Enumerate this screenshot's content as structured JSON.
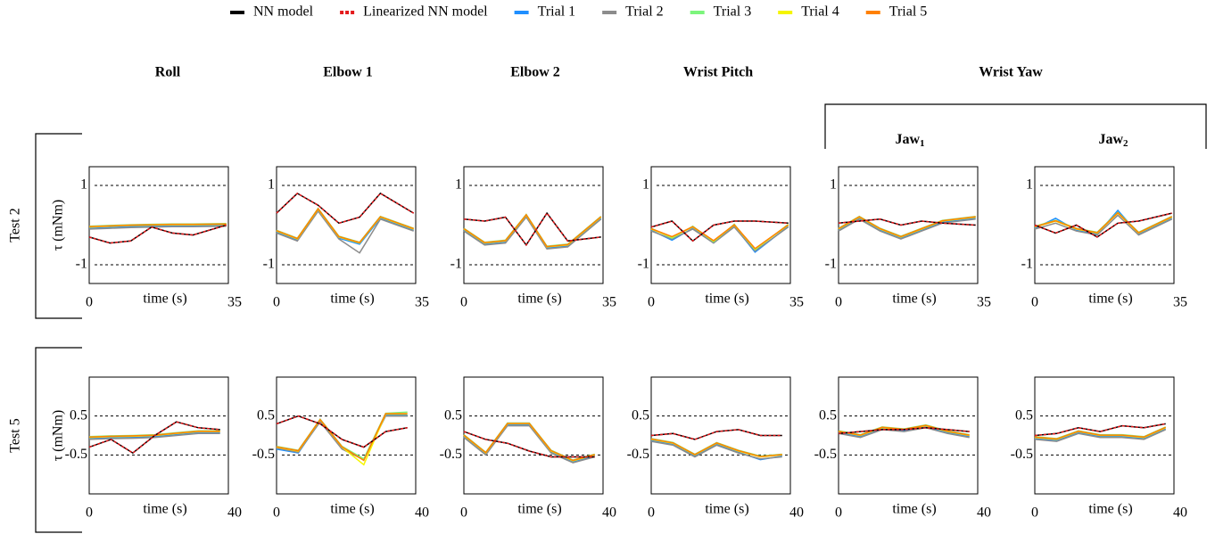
{
  "chart_data": {
    "type": "line",
    "series": [
      {
        "name": "NN model",
        "color": "#000000",
        "dash": "solid"
      },
      {
        "name": "Linearized NN model",
        "color": "#e41a1c",
        "dash": "dashed"
      },
      {
        "name": "Trial 1",
        "color": "#1f8fff",
        "dash": "solid"
      },
      {
        "name": "Trial 2",
        "color": "#8c8c8c",
        "dash": "solid"
      },
      {
        "name": "Trial 3",
        "color": "#7cf57c",
        "dash": "solid"
      },
      {
        "name": "Trial 4",
        "color": "#f5f500",
        "dash": "solid"
      },
      {
        "name": "Trial 5",
        "color": "#ff8000",
        "dash": "solid"
      }
    ],
    "column_titles": [
      "Roll",
      "Elbow 1",
      "Elbow 2",
      "Wrist Pitch",
      "Wrist Yaw"
    ],
    "sub_titles": [
      {
        "text": "Jaw",
        "sub": "1"
      },
      {
        "text": "Jaw",
        "sub": "2"
      }
    ],
    "xlabel": "time (s)",
    "ylabel": "τ (mNm)",
    "rows": [
      {
        "label": "Test 2",
        "xlim": [
          0,
          35
        ],
        "xticks": [
          0,
          35
        ],
        "ylim": [
          -1.47,
          1.47
        ],
        "yticks": [
          -1,
          1
        ],
        "x": [
          0,
          5,
          10,
          15,
          20,
          25,
          33
        ],
        "panels": [
          [
            [
              -0.3,
              -0.45,
              -0.4,
              -0.05,
              -0.2,
              -0.25,
              0
            ],
            [
              -0.3,
              -0.45,
              -0.4,
              -0.05,
              -0.2,
              -0.25,
              0
            ],
            [
              -0.08,
              -0.06,
              -0.04,
              -0.03,
              -0.02,
              -0.02,
              -0.01
            ],
            [
              -0.1,
              -0.08,
              -0.06,
              -0.05,
              -0.04,
              -0.04,
              -0.03
            ],
            [
              -0.03,
              -0.01,
              0.01,
              0.02,
              0.03,
              0.03,
              0.04
            ],
            [
              -0.05,
              -0.03,
              -0.01,
              0,
              0.01,
              0.01,
              0.02
            ],
            [
              -0.04,
              -0.02,
              0,
              0.01,
              0.02,
              0.02,
              0.03
            ]
          ],
          [
            [
              0.3,
              0.8,
              0.5,
              0.05,
              0.2,
              0.8,
              0.3
            ],
            [
              0.3,
              0.8,
              0.5,
              0.05,
              0.2,
              0.8,
              0.3
            ],
            [
              -0.18,
              -0.38,
              0.37,
              -0.33,
              -0.48,
              0.17,
              -0.13
            ],
            [
              -0.2,
              -0.4,
              0.35,
              -0.35,
              -0.7,
              0.15,
              -0.15
            ],
            [
              -0.13,
              -0.33,
              0.42,
              -0.28,
              -0.43,
              0.22,
              -0.08
            ],
            [
              -0.15,
              -0.35,
              0.4,
              -0.3,
              -0.45,
              0.2,
              -0.1
            ],
            [
              -0.14,
              -0.34,
              0.41,
              -0.29,
              -0.44,
              0.21,
              -0.09
            ]
          ],
          [
            [
              0.15,
              0.1,
              0.2,
              -0.5,
              0.3,
              -0.4,
              -0.3
            ],
            [
              0.15,
              0.1,
              0.2,
              -0.5,
              0.3,
              -0.4,
              -0.3
            ],
            [
              -0.13,
              -0.48,
              -0.43,
              0.22,
              -0.58,
              -0.53,
              0.17
            ],
            [
              -0.15,
              -0.5,
              -0.45,
              0.2,
              -0.6,
              -0.55,
              0.15
            ],
            [
              -0.08,
              -0.43,
              -0.38,
              0.27,
              -0.53,
              -0.48,
              0.22
            ],
            [
              -0.1,
              -0.45,
              -0.4,
              0.25,
              -0.55,
              -0.5,
              0.2
            ],
            [
              -0.09,
              -0.44,
              -0.39,
              0.26,
              -0.54,
              -0.49,
              0.21
            ]
          ],
          [
            [
              -0.05,
              0.1,
              -0.4,
              0,
              0.1,
              0.1,
              0.05
            ],
            [
              -0.05,
              0.1,
              -0.4,
              0,
              0.1,
              0.1,
              0.05
            ],
            [
              -0.13,
              -0.38,
              -0.08,
              -0.45,
              -0.03,
              -0.68,
              -0.03
            ],
            [
              -0.15,
              -0.35,
              -0.1,
              -0.45,
              -0.05,
              -0.65,
              -0.05
            ],
            [
              -0.08,
              -0.33,
              -0.03,
              -0.42,
              0.02,
              -0.62,
              0.02
            ],
            [
              -0.1,
              -0.3,
              -0.05,
              -0.4,
              0,
              -0.6,
              0
            ],
            [
              -0.09,
              -0.29,
              -0.04,
              -0.39,
              0.01,
              -0.59,
              0.01
            ]
          ],
          [
            [
              0.05,
              0.1,
              0.15,
              0,
              0.1,
              0.05,
              0
            ],
            [
              0.05,
              0.1,
              0.15,
              0,
              0.1,
              0.05,
              0
            ],
            [
              -0.13,
              0.17,
              -0.13,
              -0.33,
              -0.13,
              0.07,
              0.17
            ],
            [
              -0.15,
              0.15,
              -0.15,
              -0.35,
              -0.15,
              0.05,
              0.15
            ],
            [
              -0.08,
              0.22,
              -0.08,
              -0.28,
              -0.08,
              0.12,
              0.22
            ],
            [
              -0.1,
              0.2,
              -0.1,
              -0.3,
              -0.1,
              0.1,
              0.2
            ],
            [
              -0.09,
              0.21,
              -0.09,
              -0.29,
              -0.09,
              0.11,
              0.21
            ]
          ],
          [
            [
              0,
              -0.2,
              0,
              -0.3,
              0.05,
              0.1,
              0.3
            ],
            [
              0,
              -0.2,
              0,
              -0.3,
              0.05,
              0.1,
              0.3
            ],
            [
              -0.08,
              0.17,
              -0.13,
              -0.23,
              0.37,
              -0.23,
              0.17
            ],
            [
              -0.1,
              0.05,
              -0.15,
              -0.25,
              0.25,
              -0.25,
              0.15
            ],
            [
              -0.03,
              0.12,
              -0.08,
              -0.18,
              0.32,
              -0.18,
              0.22
            ],
            [
              -0.05,
              0.1,
              -0.1,
              -0.2,
              0.3,
              -0.2,
              0.2
            ],
            [
              -0.04,
              0.11,
              -0.09,
              -0.19,
              0.31,
              -0.19,
              0.21
            ]
          ]
        ]
      },
      {
        "label": "Test 5",
        "xlim": [
          0,
          40
        ],
        "xticks": [
          0,
          40
        ],
        "ylim": [
          -1.5,
          1.5
        ],
        "yticks": [
          -0.5,
          0.5
        ],
        "x": [
          0,
          6,
          12,
          18,
          24,
          30,
          36
        ],
        "panels": [
          [
            [
              -0.3,
              -0.1,
              -0.45,
              0,
              0.35,
              0.2,
              0.15
            ],
            [
              -0.3,
              -0.1,
              -0.45,
              0,
              0.35,
              0.2,
              0.15
            ],
            [
              -0.08,
              -0.06,
              -0.05,
              -0.03,
              0.02,
              0.07,
              0.07
            ],
            [
              -0.1,
              -0.08,
              -0.07,
              -0.05,
              0,
              0.05,
              0.05
            ],
            [
              -0.03,
              -0.01,
              0,
              0.02,
              0.07,
              0.12,
              0.12
            ],
            [
              -0.05,
              -0.03,
              -0.02,
              0,
              0.05,
              0.1,
              0.1
            ],
            [
              -0.04,
              -0.02,
              -0.01,
              0.01,
              0.06,
              0.11,
              0.11
            ]
          ],
          [
            [
              0.3,
              0.5,
              0.3,
              -0.1,
              -0.3,
              0.1,
              0.2
            ],
            [
              0.3,
              0.5,
              0.3,
              -0.1,
              -0.3,
              0.1,
              0.2
            ],
            [
              -0.35,
              -0.45,
              0.37,
              -0.33,
              -0.6,
              0.52,
              0.52
            ],
            [
              -0.32,
              -0.43,
              0.35,
              -0.35,
              -0.62,
              0.5,
              0.5
            ],
            [
              -0.28,
              -0.38,
              0.42,
              -0.28,
              -0.6,
              0.57,
              0.6
            ],
            [
              -0.3,
              -0.4,
              0.4,
              -0.3,
              -0.75,
              0.55,
              0.55
            ],
            [
              -0.29,
              -0.39,
              0.41,
              -0.29,
              -0.64,
              0.56,
              0.56
            ]
          ],
          [
            [
              0.1,
              -0.1,
              -0.2,
              -0.4,
              -0.55,
              -0.55,
              -0.55
            ],
            [
              0.1,
              -0.1,
              -0.2,
              -0.4,
              -0.55,
              -0.55,
              -0.55
            ],
            [
              -0.03,
              -0.48,
              0.27,
              0.27,
              -0.43,
              -0.68,
              -0.53
            ],
            [
              -0.05,
              -0.5,
              0.25,
              0.25,
              -0.45,
              -0.7,
              -0.55
            ],
            [
              0.02,
              -0.43,
              0.32,
              0.32,
              -0.38,
              -0.63,
              -0.48
            ],
            [
              0,
              -0.45,
              0.3,
              0.3,
              -0.4,
              -0.65,
              -0.5
            ],
            [
              0.01,
              -0.44,
              0.31,
              0.31,
              -0.39,
              -0.64,
              -0.49
            ]
          ],
          [
            [
              0,
              0.05,
              -0.1,
              0.1,
              0.15,
              0,
              0
            ],
            [
              0,
              0.05,
              -0.1,
              0.1,
              0.15,
              0,
              0
            ],
            [
              -0.13,
              -0.23,
              -0.53,
              -0.23,
              -0.43,
              -0.62,
              -0.53
            ],
            [
              -0.15,
              -0.25,
              -0.55,
              -0.25,
              -0.45,
              -0.6,
              -0.55
            ],
            [
              -0.08,
              -0.18,
              -0.48,
              -0.18,
              -0.38,
              -0.53,
              -0.48
            ],
            [
              -0.1,
              -0.2,
              -0.5,
              -0.2,
              -0.4,
              -0.55,
              -0.5
            ],
            [
              -0.09,
              -0.19,
              -0.49,
              -0.19,
              -0.39,
              -0.54,
              -0.49
            ]
          ],
          [
            [
              0.05,
              0.1,
              0.15,
              0.15,
              0.2,
              0.15,
              0.1
            ],
            [
              0.05,
              0.1,
              0.15,
              0.15,
              0.2,
              0.15,
              0.1
            ],
            [
              0.07,
              -0.03,
              0.17,
              0.12,
              0.22,
              0.07,
              -0.03
            ],
            [
              0.05,
              -0.05,
              0.15,
              0.1,
              0.2,
              0.05,
              -0.05
            ],
            [
              0.12,
              0.02,
              0.22,
              0.17,
              0.27,
              0.12,
              0.02
            ],
            [
              0.1,
              0,
              0.2,
              0.15,
              0.25,
              0.1,
              0
            ],
            [
              0.11,
              0.01,
              0.21,
              0.16,
              0.26,
              0.11,
              0.01
            ]
          ],
          [
            [
              0,
              0.05,
              0.2,
              0.1,
              0.25,
              0.2,
              0.3
            ],
            [
              0,
              0.05,
              0.2,
              0.1,
              0.25,
              0.2,
              0.3
            ],
            [
              -0.08,
              -0.13,
              0.07,
              -0.03,
              -0.03,
              -0.08,
              0.17
            ],
            [
              -0.1,
              -0.15,
              0.05,
              -0.05,
              -0.05,
              -0.1,
              0.15
            ],
            [
              -0.03,
              -0.08,
              0.12,
              0.02,
              0.02,
              -0.03,
              0.22
            ],
            [
              -0.05,
              -0.1,
              0.1,
              0,
              0,
              -0.05,
              0.2
            ],
            [
              -0.04,
              -0.09,
              0.11,
              0.01,
              0.01,
              -0.04,
              0.21
            ]
          ]
        ]
      }
    ]
  }
}
